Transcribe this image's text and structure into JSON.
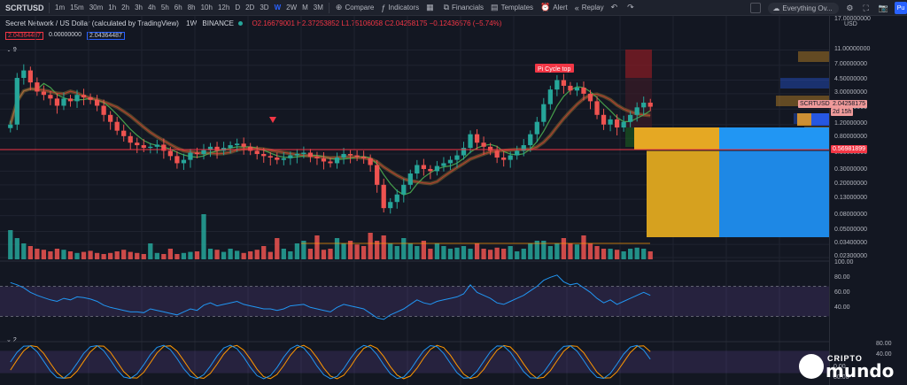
{
  "toolbar": {
    "symbol": "SCRTUSD",
    "intervals": [
      "1m",
      "15m",
      "30m",
      "1h",
      "2h",
      "3h",
      "4h",
      "5h",
      "6h",
      "8h",
      "10h",
      "12h",
      "D",
      "2D",
      "3D",
      "W",
      "2W",
      "M",
      "3M"
    ],
    "active_interval": "W",
    "compare_label": "Compare",
    "indicators_label": "Indicators",
    "financials_label": "Financials",
    "templates_label": "Templates",
    "alert_label": "Alert",
    "replay_label": "Replay",
    "search_placeholder": "Everything Ov...",
    "publish_label": "Pu"
  },
  "legend": {
    "title": "Secret Network / US Dollar (calculated by TradingView)",
    "interval": "1W",
    "exchange": "BINANCE",
    "ohlc": "O2.16679001 H2.37253852 L1.75106058 C2.04258175 −0.12436576 (−5.74%)",
    "badge_red": "2.04364487",
    "badge_zero": "0.00000000",
    "badge_blue": "2.04364487",
    "pane1_label": "9",
    "pane3_label": "2"
  },
  "axis": {
    "currency": "USD",
    "top_label": "17.00000000",
    "labels": [
      "11.00000000",
      "7.00000000",
      "4.50000000",
      "3.00000000",
      "1.90000000",
      "1.20000000",
      "0.80000000",
      "0.50000000",
      "0.30000000",
      "0.20000000",
      "0.13000000",
      "0.08000000",
      "0.05000000",
      "0.03400000",
      "0.02300000"
    ],
    "rsi_labels": [
      "100.00",
      "80.00",
      "60.00",
      "40.00"
    ],
    "stoch_labels": [
      "80.00",
      "40.00",
      "0.00",
      "80.00"
    ],
    "symbol_tag": "SCRTUSD",
    "price_tag": "2.04258175",
    "countdown_tag": "2d 15h",
    "line_tag": "0.56981899"
  },
  "annotation": {
    "text": "Pi Cycle top"
  },
  "watermark": {
    "line1": "CRIPTO",
    "line2": "mundo"
  },
  "chart_data": {
    "type": "candlestick",
    "title": "Secret Network / US Dollar (calculated by TradingView)",
    "scale": "log",
    "ylim": [
      0.023,
      17
    ],
    "horizontal_line": 0.56981899,
    "last_close": 2.04258175,
    "price_path": [
      1.2,
      4.8,
      6.0,
      4.2,
      3.2,
      2.9,
      2.6,
      2.1,
      2.6,
      2.4,
      2.9,
      2.7,
      2.5,
      2.1,
      1.6,
      1.3,
      1.0,
      0.85,
      0.7,
      0.65,
      0.6,
      0.62,
      0.66,
      0.55,
      0.47,
      0.38,
      0.42,
      0.52,
      0.5,
      0.56,
      0.62,
      0.55,
      0.6,
      0.65,
      0.68,
      0.62,
      0.55,
      0.5,
      0.47,
      0.45,
      0.42,
      0.44,
      0.48,
      0.5,
      0.52,
      0.46,
      0.44,
      0.4,
      0.38,
      0.45,
      0.5,
      0.48,
      0.46,
      0.44,
      0.36,
      0.2,
      0.1,
      0.12,
      0.15,
      0.2,
      0.28,
      0.36,
      0.32,
      0.3,
      0.35,
      0.38,
      0.42,
      0.48,
      0.6,
      0.9,
      0.7,
      0.62,
      0.55,
      0.45,
      0.42,
      0.48,
      0.55,
      0.65,
      0.9,
      1.3,
      2.2,
      3.4,
      4.5,
      3.8,
      3.3,
      3.6,
      3.0,
      2.4,
      1.6,
      1.2,
      1.4,
      1.1,
      1.3,
      1.6,
      2.0,
      2.3,
      2.04
    ],
    "volume": [
      0.55,
      0.4,
      0.3,
      0.25,
      0.2,
      0.18,
      0.15,
      0.2,
      0.18,
      0.15,
      0.12,
      0.14,
      0.16,
      0.12,
      0.1,
      0.12,
      0.15,
      0.18,
      0.14,
      0.12,
      0.1,
      0.3,
      0.12,
      0.1,
      0.2,
      0.1,
      0.12,
      0.14,
      0.15,
      0.85,
      0.2,
      0.18,
      0.14,
      0.2,
      0.16,
      0.12,
      0.15,
      0.18,
      0.25,
      0.14,
      0.4,
      0.2,
      0.15,
      0.3,
      0.35,
      0.2,
      0.45,
      0.18,
      0.2,
      0.4,
      0.3,
      0.35,
      0.28,
      0.25,
      0.5,
      0.35,
      0.45,
      0.3,
      0.25,
      0.4,
      0.3,
      0.25,
      0.35,
      0.2,
      0.3,
      0.25,
      0.2,
      0.22,
      0.25,
      0.2,
      0.3,
      0.2,
      0.18,
      0.22,
      0.2,
      0.25,
      0.15,
      0.2,
      0.3,
      0.35,
      0.35,
      0.25,
      0.3,
      0.4,
      0.3,
      0.28,
      0.45,
      0.3,
      0.25,
      0.2,
      0.2,
      0.18,
      0.15,
      0.2,
      0.22,
      0.2,
      0.15
    ],
    "rsi": [
      75,
      72,
      68,
      62,
      58,
      55,
      52,
      50,
      54,
      52,
      56,
      55,
      53,
      50,
      45,
      42,
      40,
      38,
      36,
      36,
      35,
      40,
      38,
      36,
      34,
      32,
      36,
      40,
      38,
      45,
      48,
      44,
      46,
      48,
      50,
      46,
      44,
      42,
      40,
      40,
      38,
      40,
      44,
      45,
      46,
      42,
      40,
      38,
      36,
      42,
      46,
      44,
      42,
      40,
      34,
      28,
      26,
      32,
      36,
      40,
      46,
      52,
      48,
      46,
      50,
      52,
      54,
      56,
      60,
      72,
      62,
      58,
      54,
      48,
      46,
      50,
      54,
      58,
      64,
      70,
      78,
      82,
      85,
      76,
      72,
      74,
      68,
      62,
      54,
      48,
      52,
      46,
      50,
      54,
      58,
      62,
      58
    ],
    "rsi_levels": [
      70,
      30
    ],
    "stoch_levels": [
      80,
      20
    ]
  }
}
